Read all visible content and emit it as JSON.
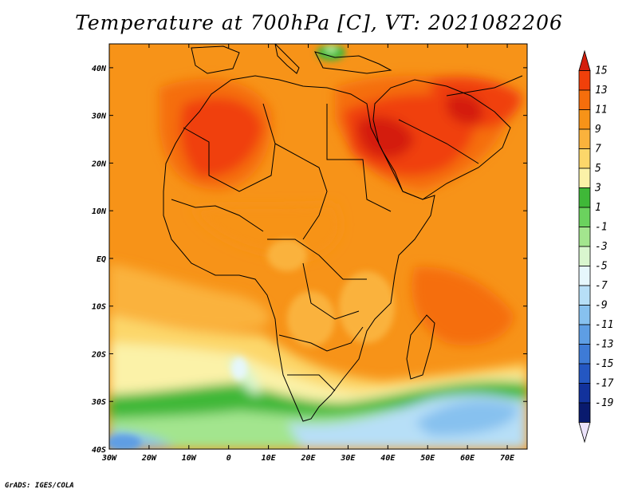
{
  "title": "Temperature at 700hPa [C], VT: 2021082206",
  "credit": "GrADS: IGES/COLA",
  "map": {
    "lon_range": [
      -30,
      75
    ],
    "lat_range": [
      -40,
      45
    ],
    "lon_ticks": [
      {
        "value": -30,
        "label": "30W"
      },
      {
        "value": -20,
        "label": "20W"
      },
      {
        "value": -10,
        "label": "10W"
      },
      {
        "value": 0,
        "label": "0"
      },
      {
        "value": 10,
        "label": "10E"
      },
      {
        "value": 20,
        "label": "20E"
      },
      {
        "value": 30,
        "label": "30E"
      },
      {
        "value": 40,
        "label": "40E"
      },
      {
        "value": 50,
        "label": "50E"
      },
      {
        "value": 60,
        "label": "60E"
      },
      {
        "value": 70,
        "label": "70E"
      }
    ],
    "lat_ticks": [
      {
        "value": 40,
        "label": "40N"
      },
      {
        "value": 30,
        "label": "30N"
      },
      {
        "value": 20,
        "label": "20N"
      },
      {
        "value": 10,
        "label": "10N"
      },
      {
        "value": 0,
        "label": "EQ"
      },
      {
        "value": -10,
        "label": "10S"
      },
      {
        "value": -20,
        "label": "20S"
      },
      {
        "value": -30,
        "label": "30S"
      },
      {
        "value": -40,
        "label": "40S"
      }
    ]
  },
  "colorbar": {
    "levels": [
      "15",
      "13",
      "11",
      "9",
      "7",
      "5",
      "3",
      "1",
      "-1",
      "-3",
      "-5",
      "-7",
      "-9",
      "-11",
      "-13",
      "-15",
      "-17",
      "-19"
    ],
    "colors": [
      "#d41e0c",
      "#f0400a",
      "#f56e0c",
      "#f79318",
      "#fab23c",
      "#fcd76a",
      "#fbf2a8",
      "#3fb838",
      "#6bd25e",
      "#a3e58e",
      "#d9f6cf",
      "#e6f7fc",
      "#b7dff7",
      "#87c1ef",
      "#5e9ee4",
      "#3e7bd6",
      "#2457c2",
      "#12329c",
      "#091a6e",
      "#ece3fb"
    ]
  }
}
